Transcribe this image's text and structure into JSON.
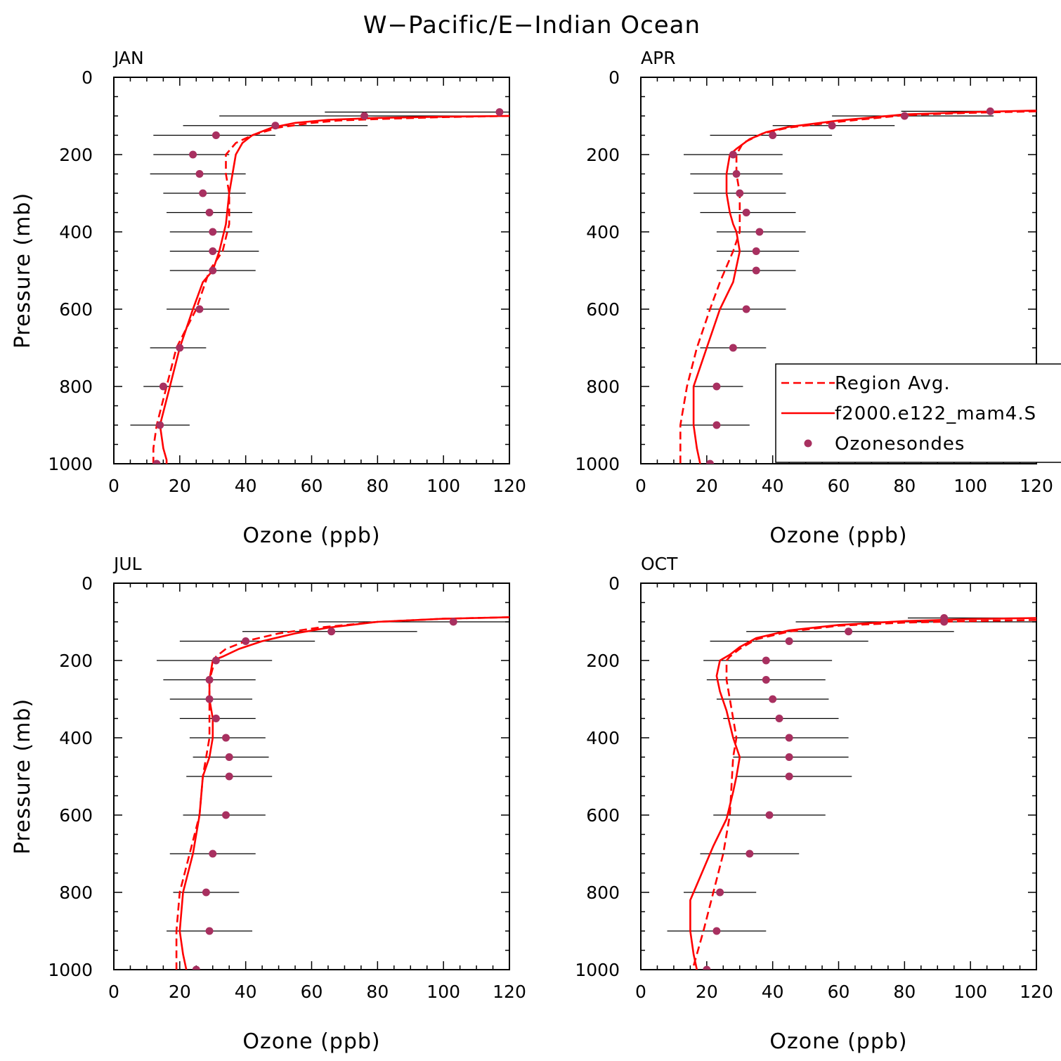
{
  "figure": {
    "title": "W−Pacific/E−Indian Ocean"
  },
  "legend": {
    "items": [
      {
        "label": "Region Avg.",
        "style": "dashed",
        "color": "#ff0000"
      },
      {
        "label": "f2000.e122_mam4.S",
        "style": "solid",
        "color": "#ff0000"
      },
      {
        "label": "Ozonesondes",
        "style": "marker",
        "color": "#a83060"
      }
    ]
  },
  "colors": {
    "model": "#ff0000",
    "sonde": "#a83060",
    "errorbar": "#000000"
  },
  "chart_data": [
    {
      "type": "line",
      "panel_title": "JAN",
      "xlabel": "Ozone (ppb)",
      "ylabel": "Pressure (mb)",
      "xlim": [
        0,
        120
      ],
      "ylim": [
        1000,
        0
      ],
      "y_inverted": true,
      "xticks": [
        0,
        20,
        40,
        60,
        80,
        100,
        120
      ],
      "yticks": [
        0,
        200,
        400,
        600,
        800,
        1000
      ],
      "show_legend": false,
      "region_avg": {
        "x": [
          120,
          100,
          80,
          68,
          60,
          50,
          42,
          37,
          34,
          34,
          35,
          35,
          33,
          29,
          25,
          19,
          16,
          13,
          12,
          12
        ],
        "y": [
          100,
          103,
          108,
          112,
          118,
          130,
          150,
          170,
          200,
          250,
          300,
          380,
          450,
          500,
          600,
          700,
          800,
          900,
          960,
          1000
        ]
      },
      "model": {
        "x": [
          120,
          100,
          80,
          65,
          55,
          48,
          42,
          39,
          37,
          36,
          35,
          34,
          32,
          30,
          27,
          24,
          20,
          17,
          14,
          15,
          16,
          16
        ],
        "y": [
          100,
          102,
          105,
          110,
          118,
          130,
          150,
          170,
          200,
          250,
          300,
          380,
          450,
          500,
          530,
          600,
          700,
          800,
          900,
          960,
          990,
          1000
        ]
      },
      "ozonesondes": {
        "p": [
          90,
          100,
          125,
          150,
          200,
          250,
          300,
          350,
          400,
          450,
          500,
          600,
          700,
          800,
          900,
          1000
        ],
        "mean": [
          117,
          76,
          49,
          31,
          24,
          26,
          27,
          29,
          30,
          30,
          30,
          26,
          20,
          15,
          14,
          13
        ],
        "low": [
          64,
          32,
          21,
          12,
          12,
          11,
          15,
          16,
          17,
          17,
          17,
          16,
          11,
          9,
          5,
          3
        ],
        "high": [
          120,
          120,
          77,
          49,
          35,
          40,
          40,
          42,
          42,
          44,
          43,
          35,
          28,
          21,
          23,
          22
        ]
      }
    },
    {
      "type": "line",
      "panel_title": "APR",
      "xlabel": "Ozone (ppb)",
      "ylabel": "",
      "xlim": [
        0,
        120
      ],
      "ylim": [
        1000,
        0
      ],
      "y_inverted": true,
      "xticks": [
        0,
        20,
        40,
        60,
        80,
        100,
        120
      ],
      "yticks": [
        0,
        200,
        400,
        600,
        800,
        1000
      ],
      "show_legend": true,
      "region_avg": {
        "x": [
          120,
          100,
          80,
          60,
          45,
          37,
          31,
          29,
          29,
          30,
          30,
          28,
          24,
          21,
          17,
          14,
          12,
          12,
          12
        ],
        "y": [
          88,
          92,
          98,
          115,
          130,
          145,
          170,
          200,
          250,
          300,
          400,
          450,
          530,
          600,
          700,
          800,
          900,
          960,
          1000
        ]
      },
      "model": {
        "x": [
          120,
          100,
          80,
          60,
          45,
          38,
          33,
          29,
          27,
          26,
          26,
          27,
          28,
          29,
          30,
          28,
          24,
          20,
          16,
          16,
          17,
          18
        ],
        "y": [
          86,
          90,
          96,
          112,
          128,
          142,
          160,
          185,
          200,
          250,
          300,
          350,
          380,
          400,
          450,
          530,
          600,
          700,
          800,
          900,
          960,
          1000
        ]
      },
      "ozonesondes": {
        "p": [
          88,
          100,
          125,
          150,
          200,
          250,
          300,
          350,
          400,
          450,
          500,
          600,
          700,
          800,
          900,
          1000
        ],
        "mean": [
          106,
          80,
          58,
          40,
          28,
          29,
          30,
          32,
          36,
          35,
          35,
          32,
          28,
          23,
          23,
          21
        ],
        "low": [
          79,
          58,
          40,
          21,
          13,
          15,
          16,
          18,
          23,
          23,
          23,
          20,
          18,
          16,
          12,
          8
        ],
        "high": [
          120,
          107,
          77,
          58,
          43,
          43,
          44,
          47,
          50,
          48,
          47,
          44,
          38,
          31,
          33,
          33
        ]
      }
    },
    {
      "type": "line",
      "panel_title": "JUL",
      "xlabel": "Ozone (ppb)",
      "ylabel": "Pressure (mb)",
      "xlim": [
        0,
        120
      ],
      "ylim": [
        1000,
        0
      ],
      "y_inverted": true,
      "xticks": [
        0,
        20,
        40,
        60,
        80,
        100,
        120
      ],
      "yticks": [
        0,
        200,
        400,
        600,
        800,
        1000
      ],
      "show_legend": false,
      "region_avg": {
        "x": [
          120,
          100,
          80,
          62,
          50,
          40,
          34,
          31,
          30,
          29,
          29,
          29,
          28,
          27,
          26,
          23,
          20,
          19,
          19,
          19
        ],
        "y": [
          88,
          92,
          100,
          115,
          130,
          150,
          170,
          190,
          220,
          250,
          300,
          400,
          450,
          500,
          600,
          700,
          800,
          900,
          960,
          1000
        ]
      },
      "model": {
        "x": [
          120,
          100,
          80,
          65,
          55,
          45,
          38,
          33,
          30,
          29,
          29,
          30,
          30,
          29,
          27,
          26,
          24,
          21,
          20,
          21,
          22
        ],
        "y": [
          88,
          92,
          100,
          115,
          130,
          150,
          170,
          190,
          200,
          250,
          300,
          350,
          400,
          450,
          500,
          600,
          700,
          800,
          900,
          960,
          1000
        ]
      },
      "ozonesondes": {
        "p": [
          100,
          125,
          150,
          200,
          250,
          300,
          350,
          400,
          450,
          500,
          600,
          700,
          800,
          900,
          1000
        ],
        "mean": [
          103,
          66,
          40,
          31,
          29,
          29,
          31,
          34,
          35,
          35,
          34,
          30,
          28,
          29,
          25
        ],
        "low": [
          62,
          39,
          20,
          13,
          15,
          17,
          20,
          23,
          24,
          22,
          21,
          17,
          18,
          16,
          12
        ],
        "high": [
          120,
          92,
          61,
          48,
          43,
          42,
          43,
          46,
          47,
          48,
          46,
          43,
          38,
          42,
          38
        ]
      }
    },
    {
      "type": "line",
      "panel_title": "OCT",
      "xlabel": "Ozone (ppb)",
      "ylabel": "",
      "xlim": [
        0,
        120
      ],
      "ylim": [
        1000,
        0
      ],
      "y_inverted": true,
      "xticks": [
        0,
        20,
        40,
        60,
        80,
        100,
        120
      ],
      "yticks": [
        0,
        200,
        400,
        600,
        800,
        1000
      ],
      "show_legend": false,
      "region_avg": {
        "x": [
          120,
          100,
          80,
          60,
          45,
          35,
          30,
          27,
          26,
          26,
          27,
          28,
          29,
          28,
          27,
          25,
          22,
          19,
          17,
          16,
          17
        ],
        "y": [
          95,
          98,
          102,
          110,
          125,
          145,
          170,
          190,
          200,
          250,
          300,
          350,
          400,
          450,
          600,
          700,
          800,
          900,
          960,
          990,
          1000
        ]
      },
      "model": {
        "x": [
          120,
          100,
          80,
          60,
          45,
          35,
          30,
          27,
          24,
          23,
          24,
          26,
          28,
          30,
          29,
          28,
          26,
          22,
          18,
          15,
          15,
          16,
          17
        ],
        "y": [
          90,
          93,
          98,
          108,
          122,
          142,
          165,
          185,
          200,
          240,
          280,
          330,
          400,
          450,
          500,
          540,
          610,
          680,
          760,
          820,
          900,
          960,
          1000
        ]
      },
      "ozonesondes": {
        "p": [
          90,
          100,
          125,
          150,
          200,
          250,
          300,
          350,
          400,
          450,
          500,
          600,
          700,
          800,
          900,
          1000
        ],
        "mean": [
          92,
          92,
          63,
          45,
          38,
          38,
          40,
          42,
          45,
          45,
          45,
          39,
          33,
          24,
          23,
          20
        ],
        "low": [
          81,
          47,
          32,
          21,
          19,
          20,
          23,
          25,
          28,
          28,
          29,
          22,
          18,
          13,
          8,
          6
        ],
        "high": [
          120,
          120,
          95,
          69,
          58,
          56,
          57,
          60,
          63,
          63,
          64,
          56,
          48,
          35,
          38,
          35
        ]
      }
    }
  ]
}
